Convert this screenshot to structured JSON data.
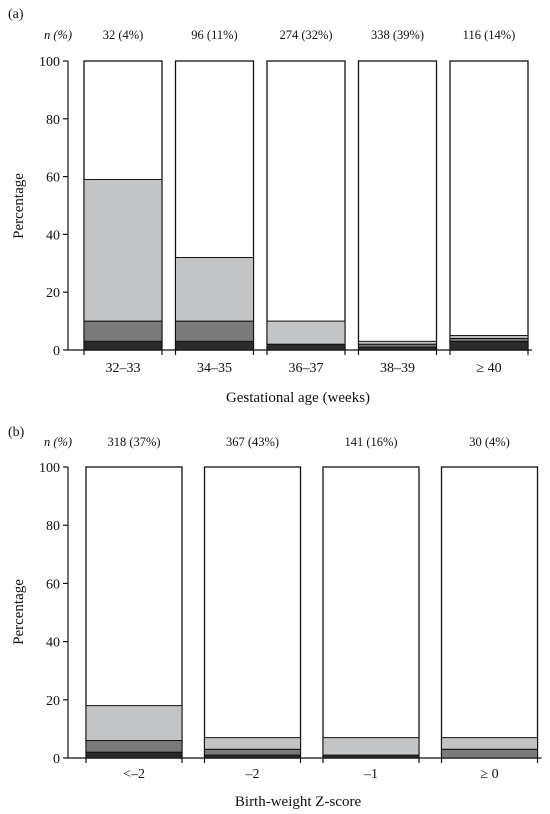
{
  "chart_data": [
    {
      "panel": "(a)",
      "type": "bar",
      "stacked": true,
      "n_header": "n (%)",
      "categories": [
        "32–33",
        "34–35",
        "36–37",
        "38–39",
        "≥ 40"
      ],
      "counts": [
        "32 (4%)",
        "96 (11%)",
        "274 (32%)",
        "338 (39%)",
        "116 (14%)"
      ],
      "series": [
        {
          "values": [
            3,
            3,
            2,
            1,
            3
          ],
          "color": "#2b2b2b"
        },
        {
          "values": [
            7,
            7,
            0,
            1,
            1
          ],
          "color": "#7a7a7a"
        },
        {
          "values": [
            49,
            22,
            8,
            1,
            1
          ],
          "color": "#c2c4c6"
        }
      ],
      "xlabel": "Gestational age (weeks)",
      "ylabel": "Percentage",
      "ylim": [
        0,
        100
      ],
      "yticks": [
        0,
        20,
        40,
        60,
        80,
        100
      ]
    },
    {
      "panel": "(b)",
      "type": "bar",
      "stacked": true,
      "n_header": "n (%)",
      "categories": [
        "<–2",
        "–2",
        "–1",
        "≥ 0"
      ],
      "counts": [
        "318 (37%)",
        "367 (43%)",
        "141 (16%)",
        "30 (4%)"
      ],
      "series": [
        {
          "values": [
            2,
            1,
            1,
            0
          ],
          "color": "#2b2b2b"
        },
        {
          "values": [
            4,
            2,
            0,
            3
          ],
          "color": "#7a7a7a"
        },
        {
          "values": [
            12,
            4,
            6,
            4
          ],
          "color": "#c2c4c6"
        }
      ],
      "xlabel": "Birth-weight Z-score",
      "ylabel": "Percentage",
      "ylim": [
        0,
        100
      ],
      "yticks": [
        0,
        20,
        40,
        60,
        80,
        100
      ]
    }
  ]
}
